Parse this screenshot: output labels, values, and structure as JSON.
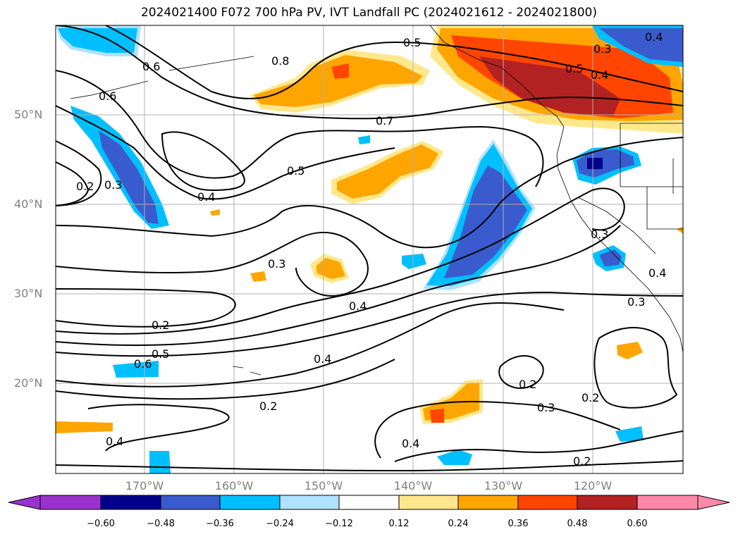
{
  "title": "2024021400 F072 700 hPa PV, IVT Landfall PC (2024021612 - 2024021800)",
  "map": {
    "lat_labels": [
      "50°N",
      "40°N",
      "30°N",
      "20°N"
    ],
    "lon_labels": [
      "170°W",
      "160°W",
      "150°W",
      "140°W",
      "130°W",
      "120°W"
    ],
    "contour_labels": [
      "0.5",
      "0.8",
      "0.6",
      "0.6",
      "0.7",
      "0.5",
      "0.4",
      "0.3",
      "0.2",
      "0.3",
      "0.4",
      "0.2",
      "0.5",
      "0.6",
      "0.4",
      "0.2",
      "0.4",
      "0.3",
      "0.2",
      "0.2",
      "0.3",
      "0.3",
      "0.4",
      "0.4",
      "0.3",
      "0.5",
      "0.4",
      "0.4",
      "0.2"
    ],
    "contour_color": "#000000",
    "grid_color": "#b0b0b0",
    "coast_color": "#000000"
  },
  "colorbar": {
    "ticks": [
      "−0.60",
      "−0.48",
      "−0.36",
      "−0.24",
      "−0.12",
      "0.12",
      "0.24",
      "0.36",
      "0.48",
      "0.60"
    ],
    "colors": [
      "#9932cc",
      "#00008b",
      "#3a5bcd",
      "#00bfff",
      "#b0e2ff",
      "#ffffff",
      "#ffe88c",
      "#ffa500",
      "#ff4500",
      "#b22222",
      "#ff88aa"
    ]
  }
}
